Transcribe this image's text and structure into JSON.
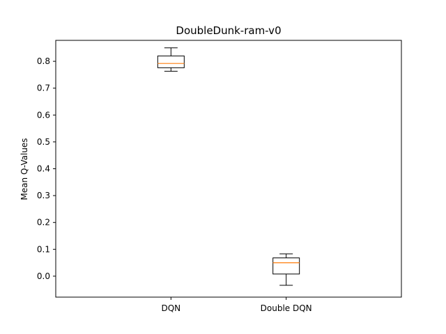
{
  "chart_data": {
    "type": "box",
    "title": "DoubleDunk-ram-v0",
    "xlabel": "",
    "ylabel": "Mean Q-Values",
    "ylim": [
      -0.078,
      0.878
    ],
    "yticks": [
      0.0,
      0.1,
      0.2,
      0.3,
      0.4,
      0.5,
      0.6,
      0.7,
      0.8
    ],
    "ytick_labels": [
      "0.0",
      "0.1",
      "0.2",
      "0.3",
      "0.4",
      "0.5",
      "0.6",
      "0.7",
      "0.8"
    ],
    "grid": false,
    "categories": [
      "DQN",
      "Double DQN"
    ],
    "boxes": [
      {
        "name": "DQN",
        "whisker_low": 0.763,
        "q1": 0.776,
        "median": 0.792,
        "q3": 0.82,
        "whisker_high": 0.85
      },
      {
        "name": "Double DQN",
        "whisker_low": -0.034,
        "q1": 0.008,
        "median": 0.05,
        "q3": 0.068,
        "whisker_high": 0.083
      }
    ],
    "colors": {
      "box": "#000000",
      "median": "#ff7f0e",
      "axes": "#000000"
    }
  }
}
